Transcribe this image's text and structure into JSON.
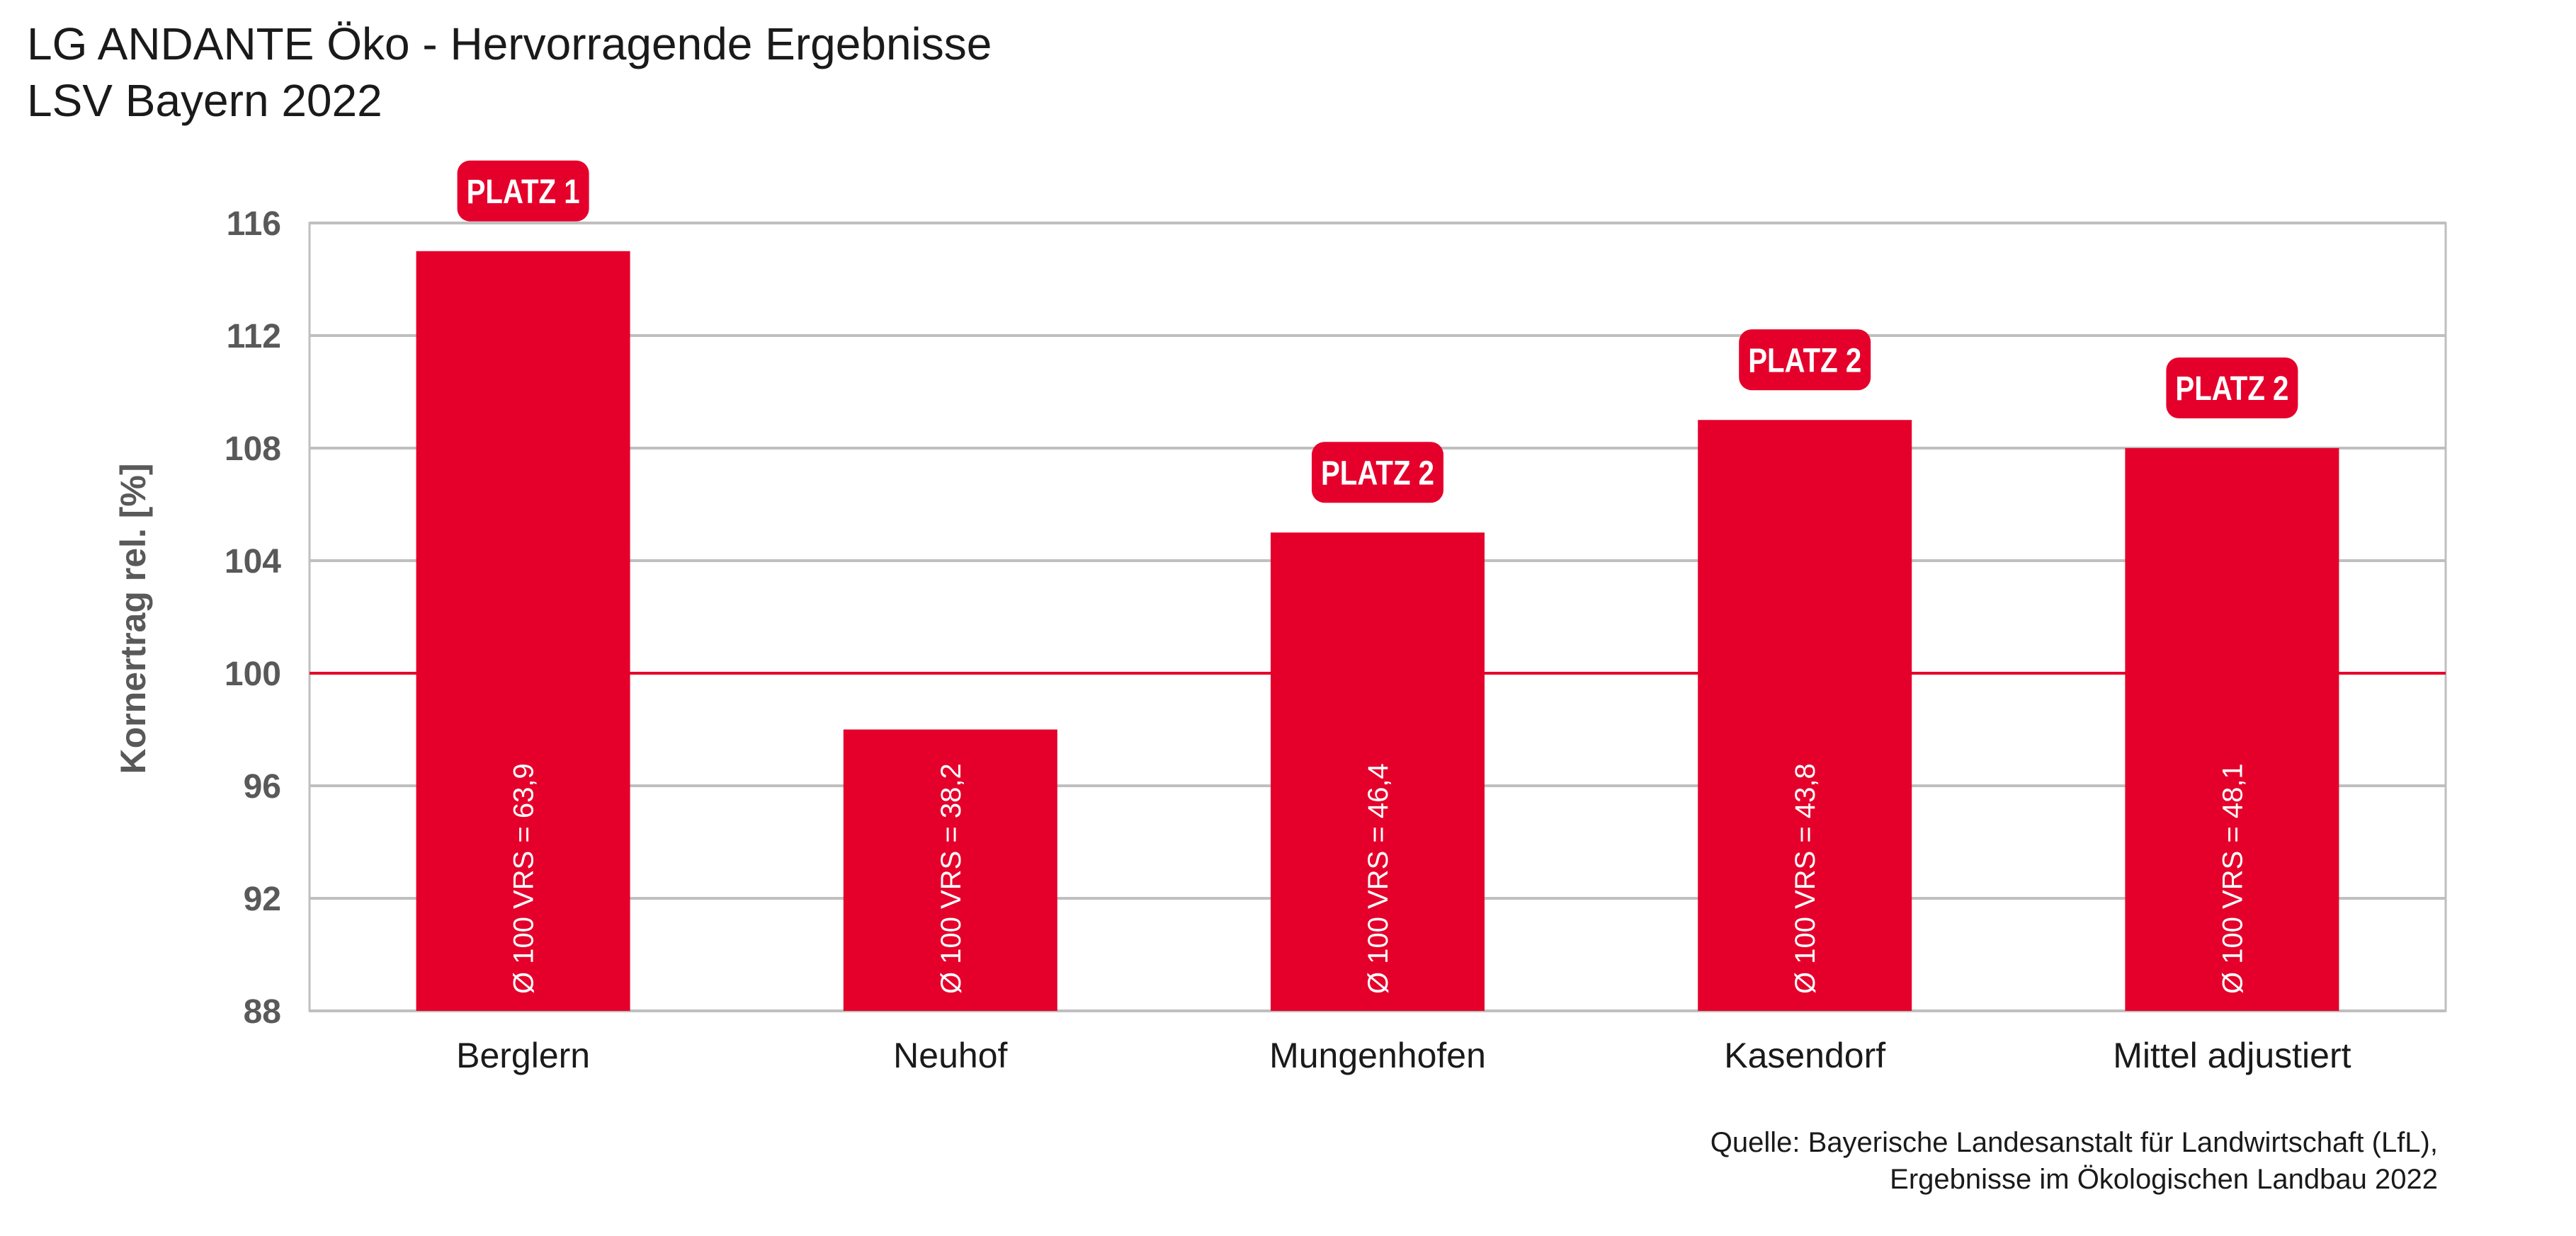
{
  "header": {
    "title_line1": "LG ANDANTE Öko - Hervorragende Ergebnisse",
    "title_line2": "LSV Bayern 2022"
  },
  "source": {
    "line1": "Quelle: Bayerische Landesanstalt für Landwirtschaft (LfL),",
    "line2": "Ergebnisse im Ökologischen Landbau 2022"
  },
  "colors": {
    "bar": "#e4002b",
    "reference_line": "#e4002b",
    "grid": "#bfbfbf",
    "axis_text": "#595959"
  },
  "chart_data": {
    "type": "bar",
    "ylabel": "Kornertrag rel. [%]",
    "ylim": [
      88,
      116
    ],
    "yticks": [
      88,
      92,
      96,
      100,
      104,
      108,
      112,
      116
    ],
    "reference_value": 100,
    "grid": true,
    "categories": [
      "Berglern",
      "Neuhof",
      "Mungenhofen",
      "Kasendorf",
      "Mittel adjustiert"
    ],
    "values": [
      115,
      98,
      105,
      109,
      108
    ],
    "bar_labels": [
      "Ø 100 VRS = 63,9",
      "Ø 100 VRS = 38,2",
      "Ø 100 VRS = 46,4",
      "Ø 100 VRS = 43,8",
      "Ø 100 VRS = 48,1"
    ],
    "badges": [
      "PLATZ 1",
      "",
      "PLATZ 2",
      "PLATZ 2",
      "PLATZ 2"
    ]
  }
}
